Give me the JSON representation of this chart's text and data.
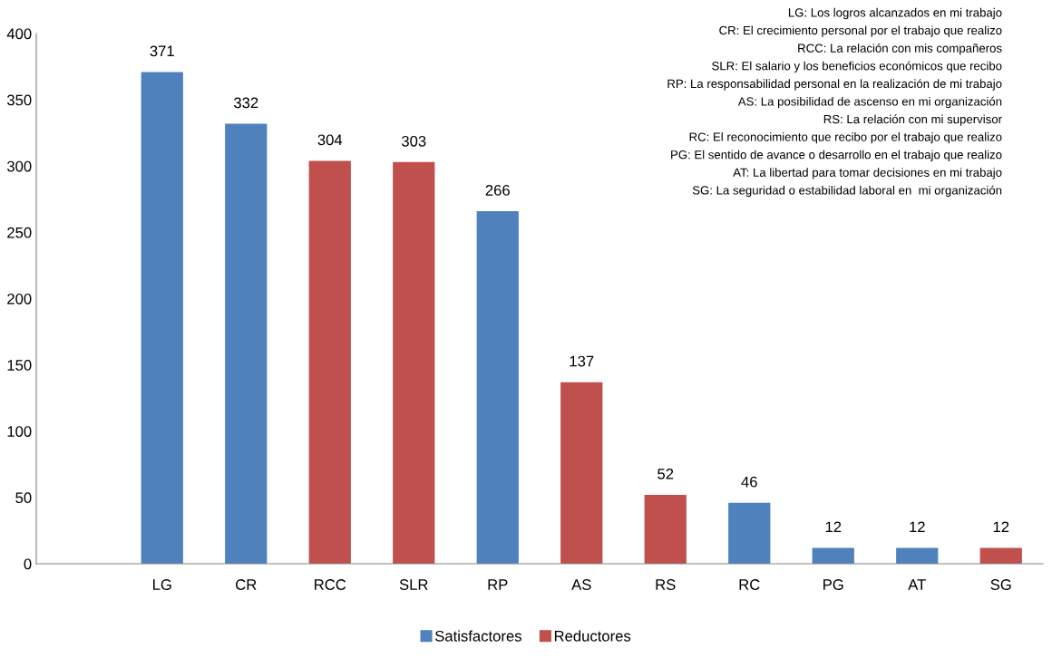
{
  "chart_data": {
    "type": "bar",
    "categories": [
      null,
      "LG",
      "CR",
      "RCC",
      "SLR",
      "RP",
      "AS",
      "RS",
      "RC",
      "PG",
      "AT",
      "SG"
    ],
    "series": [
      {
        "name": "Satisfactores",
        "color": "#4f81bd",
        "values": [
          null,
          371,
          332,
          null,
          null,
          266,
          null,
          null,
          46,
          12,
          12,
          null
        ]
      },
      {
        "name": "Reductores",
        "color": "#c0504d",
        "values": [
          null,
          null,
          null,
          304,
          303,
          null,
          137,
          52,
          null,
          null,
          null,
          12
        ]
      }
    ],
    "ylim": [
      0,
      400
    ],
    "yticks": [
      0,
      50,
      100,
      150,
      200,
      250,
      300,
      350,
      400
    ],
    "grid": false,
    "legend": "bottom",
    "data_labels": true,
    "annotations": [
      "LG: Los logros alcanzados en mi trabajo",
      "CR: El crecimiento personal por el trabajo que realizo",
      "RCC: La relación con mis compañeros",
      "SLR: El salario y los beneficios económicos que recibo",
      "RP: La responsabilidad personal en la realización de mi trabajo",
      "AS: La posibilidad de ascenso en mi organización",
      "RS: La relación con mi supervisor",
      "RC: El reconocimiento que recibo por el trabajo que realizo",
      "PG: El sentido de avance o desarrollo en el trabajo que realizo",
      "AT: La libertad para tomar decisiones en mi trabajo",
      "SG: La seguridad o estabilidad laboral en  mi organización"
    ]
  }
}
